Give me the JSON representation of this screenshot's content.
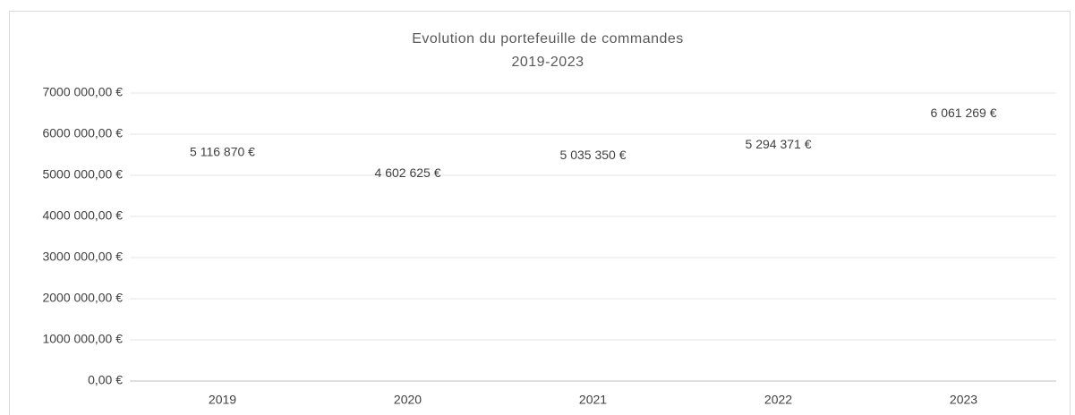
{
  "chart_data": {
    "type": "line",
    "title": "Evolution du portefeuille de commandes",
    "subtitle": "2019-2023",
    "categories": [
      "2019",
      "2020",
      "2021",
      "2022",
      "2023"
    ],
    "values": [
      5116870,
      4602625,
      5035350,
      5294371,
      6061269
    ],
    "value_labels": [
      "5 116 870 €",
      "4 602 625 €",
      "5 035 350 €",
      "5 294 371 €",
      "6 061 269 €"
    ],
    "ylim": [
      0,
      7000000
    ],
    "yticks": [
      {
        "value": 0,
        "label": "0,00 €"
      },
      {
        "value": 1000000,
        "label": "1000 000,00 €"
      },
      {
        "value": 2000000,
        "label": "2000 000,00 €"
      },
      {
        "value": 3000000,
        "label": "3000 000,00 €"
      },
      {
        "value": 4000000,
        "label": "4000 000,00 €"
      },
      {
        "value": 5000000,
        "label": "5000 000,00 €"
      },
      {
        "value": 6000000,
        "label": "6000 000,00 €"
      },
      {
        "value": 7000000,
        "label": "7000 000,00 €"
      }
    ],
    "grid": true
  }
}
